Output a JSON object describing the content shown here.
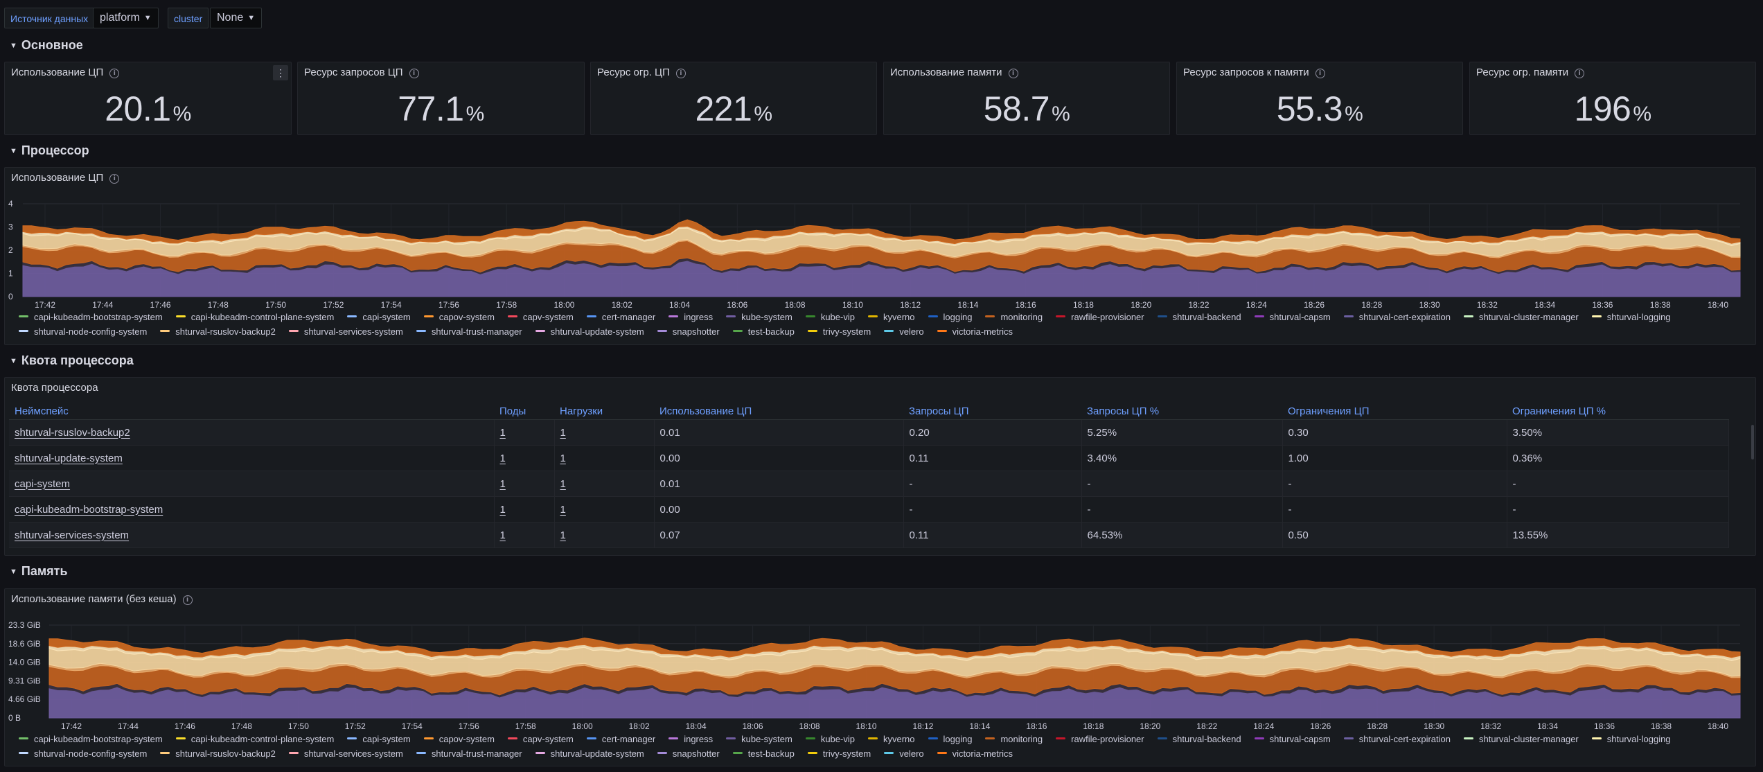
{
  "variables": [
    {
      "label": "Источник данных",
      "value": "platform"
    },
    {
      "label": "cluster",
      "value": "None"
    }
  ],
  "rows": {
    "main": "Основное",
    "cpu": "Процессор",
    "quota": "Квота процессора",
    "memory": "Память"
  },
  "stats": [
    {
      "title": "Использование ЦП",
      "value": "20.1",
      "unit": "%"
    },
    {
      "title": "Ресурс запросов ЦП",
      "value": "77.1",
      "unit": "%"
    },
    {
      "title": "Ресурс огр. ЦП",
      "value": "221",
      "unit": "%"
    },
    {
      "title": "Использование памяти",
      "value": "58.7",
      "unit": "%"
    },
    {
      "title": "Ресурс запросов к памяти",
      "value": "55.3",
      "unit": "%"
    },
    {
      "title": "Ресурс огр. памяти",
      "value": "196",
      "unit": "%"
    }
  ],
  "cpu_panel": {
    "title": "Использование ЦП",
    "y_ticks": [
      "4",
      "3",
      "2",
      "1",
      "0"
    ],
    "x_ticks": [
      "17:42",
      "17:44",
      "17:46",
      "17:48",
      "17:50",
      "17:52",
      "17:54",
      "17:56",
      "17:58",
      "18:00",
      "18:02",
      "18:04",
      "18:06",
      "18:08",
      "18:10",
      "18:12",
      "18:14",
      "18:16",
      "18:18",
      "18:20",
      "18:22",
      "18:24",
      "18:26",
      "18:28",
      "18:30",
      "18:32",
      "18:34",
      "18:36",
      "18:38",
      "18:40"
    ]
  },
  "quota_panel": {
    "title": "Квота процессора",
    "columns": [
      "Неймспейс",
      "Поды",
      "Нагрузки",
      "Использование ЦП",
      "Запросы ЦП",
      "Запросы ЦП %",
      "Ограничения ЦП",
      "Ограничения ЦП %"
    ],
    "rows": [
      [
        "shturval-rsuslov-backup2",
        "1",
        "1",
        "0.01",
        "0.20",
        "5.25%",
        "0.30",
        "3.50%"
      ],
      [
        "shturval-update-system",
        "1",
        "1",
        "0.00",
        "0.11",
        "3.40%",
        "1.00",
        "0.36%"
      ],
      [
        "capi-system",
        "1",
        "1",
        "0.01",
        "-",
        "-",
        "-",
        "-"
      ],
      [
        "capi-kubeadm-bootstrap-system",
        "1",
        "1",
        "0.00",
        "-",
        "-",
        "-",
        "-"
      ],
      [
        "shturval-services-system",
        "1",
        "1",
        "0.07",
        "0.11",
        "64.53%",
        "0.50",
        "13.55%"
      ]
    ]
  },
  "memory_panel": {
    "title": "Использование памяти (без кеша)",
    "y_ticks": [
      "23.3 GiB",
      "18.6 GiB",
      "14.0 GiB",
      "9.31 GiB",
      "4.66 GiB",
      "0 B"
    ],
    "x_ticks": [
      "17:42",
      "17:44",
      "17:46",
      "17:48",
      "17:50",
      "17:52",
      "17:54",
      "17:56",
      "17:58",
      "18:00",
      "18:02",
      "18:04",
      "18:06",
      "18:08",
      "18:10",
      "18:12",
      "18:14",
      "18:16",
      "18:18",
      "18:20",
      "18:22",
      "18:24",
      "18:26",
      "18:28",
      "18:30",
      "18:32",
      "18:34",
      "18:36",
      "18:38",
      "18:40"
    ]
  },
  "legend": {
    "row1": [
      {
        "name": "capi-kubeadm-bootstrap-system",
        "color": "#73bf69"
      },
      {
        "name": "capi-kubeadm-control-plane-system",
        "color": "#fade2a"
      },
      {
        "name": "capi-system",
        "color": "#8ab8ff"
      },
      {
        "name": "capov-system",
        "color": "#ff9830"
      },
      {
        "name": "capv-system",
        "color": "#f2495c"
      },
      {
        "name": "cert-manager",
        "color": "#5794f2"
      },
      {
        "name": "ingress",
        "color": "#b877d9"
      },
      {
        "name": "kube-system",
        "color": "#705da0"
      },
      {
        "name": "kube-vip",
        "color": "#37872d"
      },
      {
        "name": "kyverno",
        "color": "#e0b400"
      },
      {
        "name": "logging",
        "color": "#1f60c4"
      },
      {
        "name": "monitoring",
        "color": "#c4621f"
      },
      {
        "name": "rawfile-provisioner",
        "color": "#c4162a"
      },
      {
        "name": "shturval-backend",
        "color": "#1f4f8a"
      },
      {
        "name": "shturval-capsm",
        "color": "#8f3bb8"
      },
      {
        "name": "shturval-cert-expiration",
        "color": "#6b5fa0"
      },
      {
        "name": "shturval-cluster-manager",
        "color": "#c8f2c2"
      },
      {
        "name": "shturval-logging",
        "color": "#fff4b0"
      }
    ],
    "row2": [
      {
        "name": "shturval-node-config-system",
        "color": "#c0d8ff"
      },
      {
        "name": "shturval-rsuslov-backup2",
        "color": "#ffcb7d"
      },
      {
        "name": "shturval-services-system",
        "color": "#ffa6b0"
      },
      {
        "name": "shturval-trust-manager",
        "color": "#8ab8ff"
      },
      {
        "name": "shturval-update-system",
        "color": "#e5a8e2"
      },
      {
        "name": "snapshotter",
        "color": "#a48bd8"
      },
      {
        "name": "test-backup",
        "color": "#56a64b"
      },
      {
        "name": "trivy-system",
        "color": "#f2cc0c"
      },
      {
        "name": "velero",
        "color": "#5ec9e8"
      },
      {
        "name": "victoria-metrics",
        "color": "#ff7818"
      }
    ]
  },
  "colors": {
    "background": "#111217",
    "panel": "#181b1f",
    "accent_link": "#6e9fff",
    "area_purple": "#705da0",
    "area_orange": "#c4621f",
    "area_cream": "#f5d5a0",
    "area_light": "#fff2c8"
  }
}
